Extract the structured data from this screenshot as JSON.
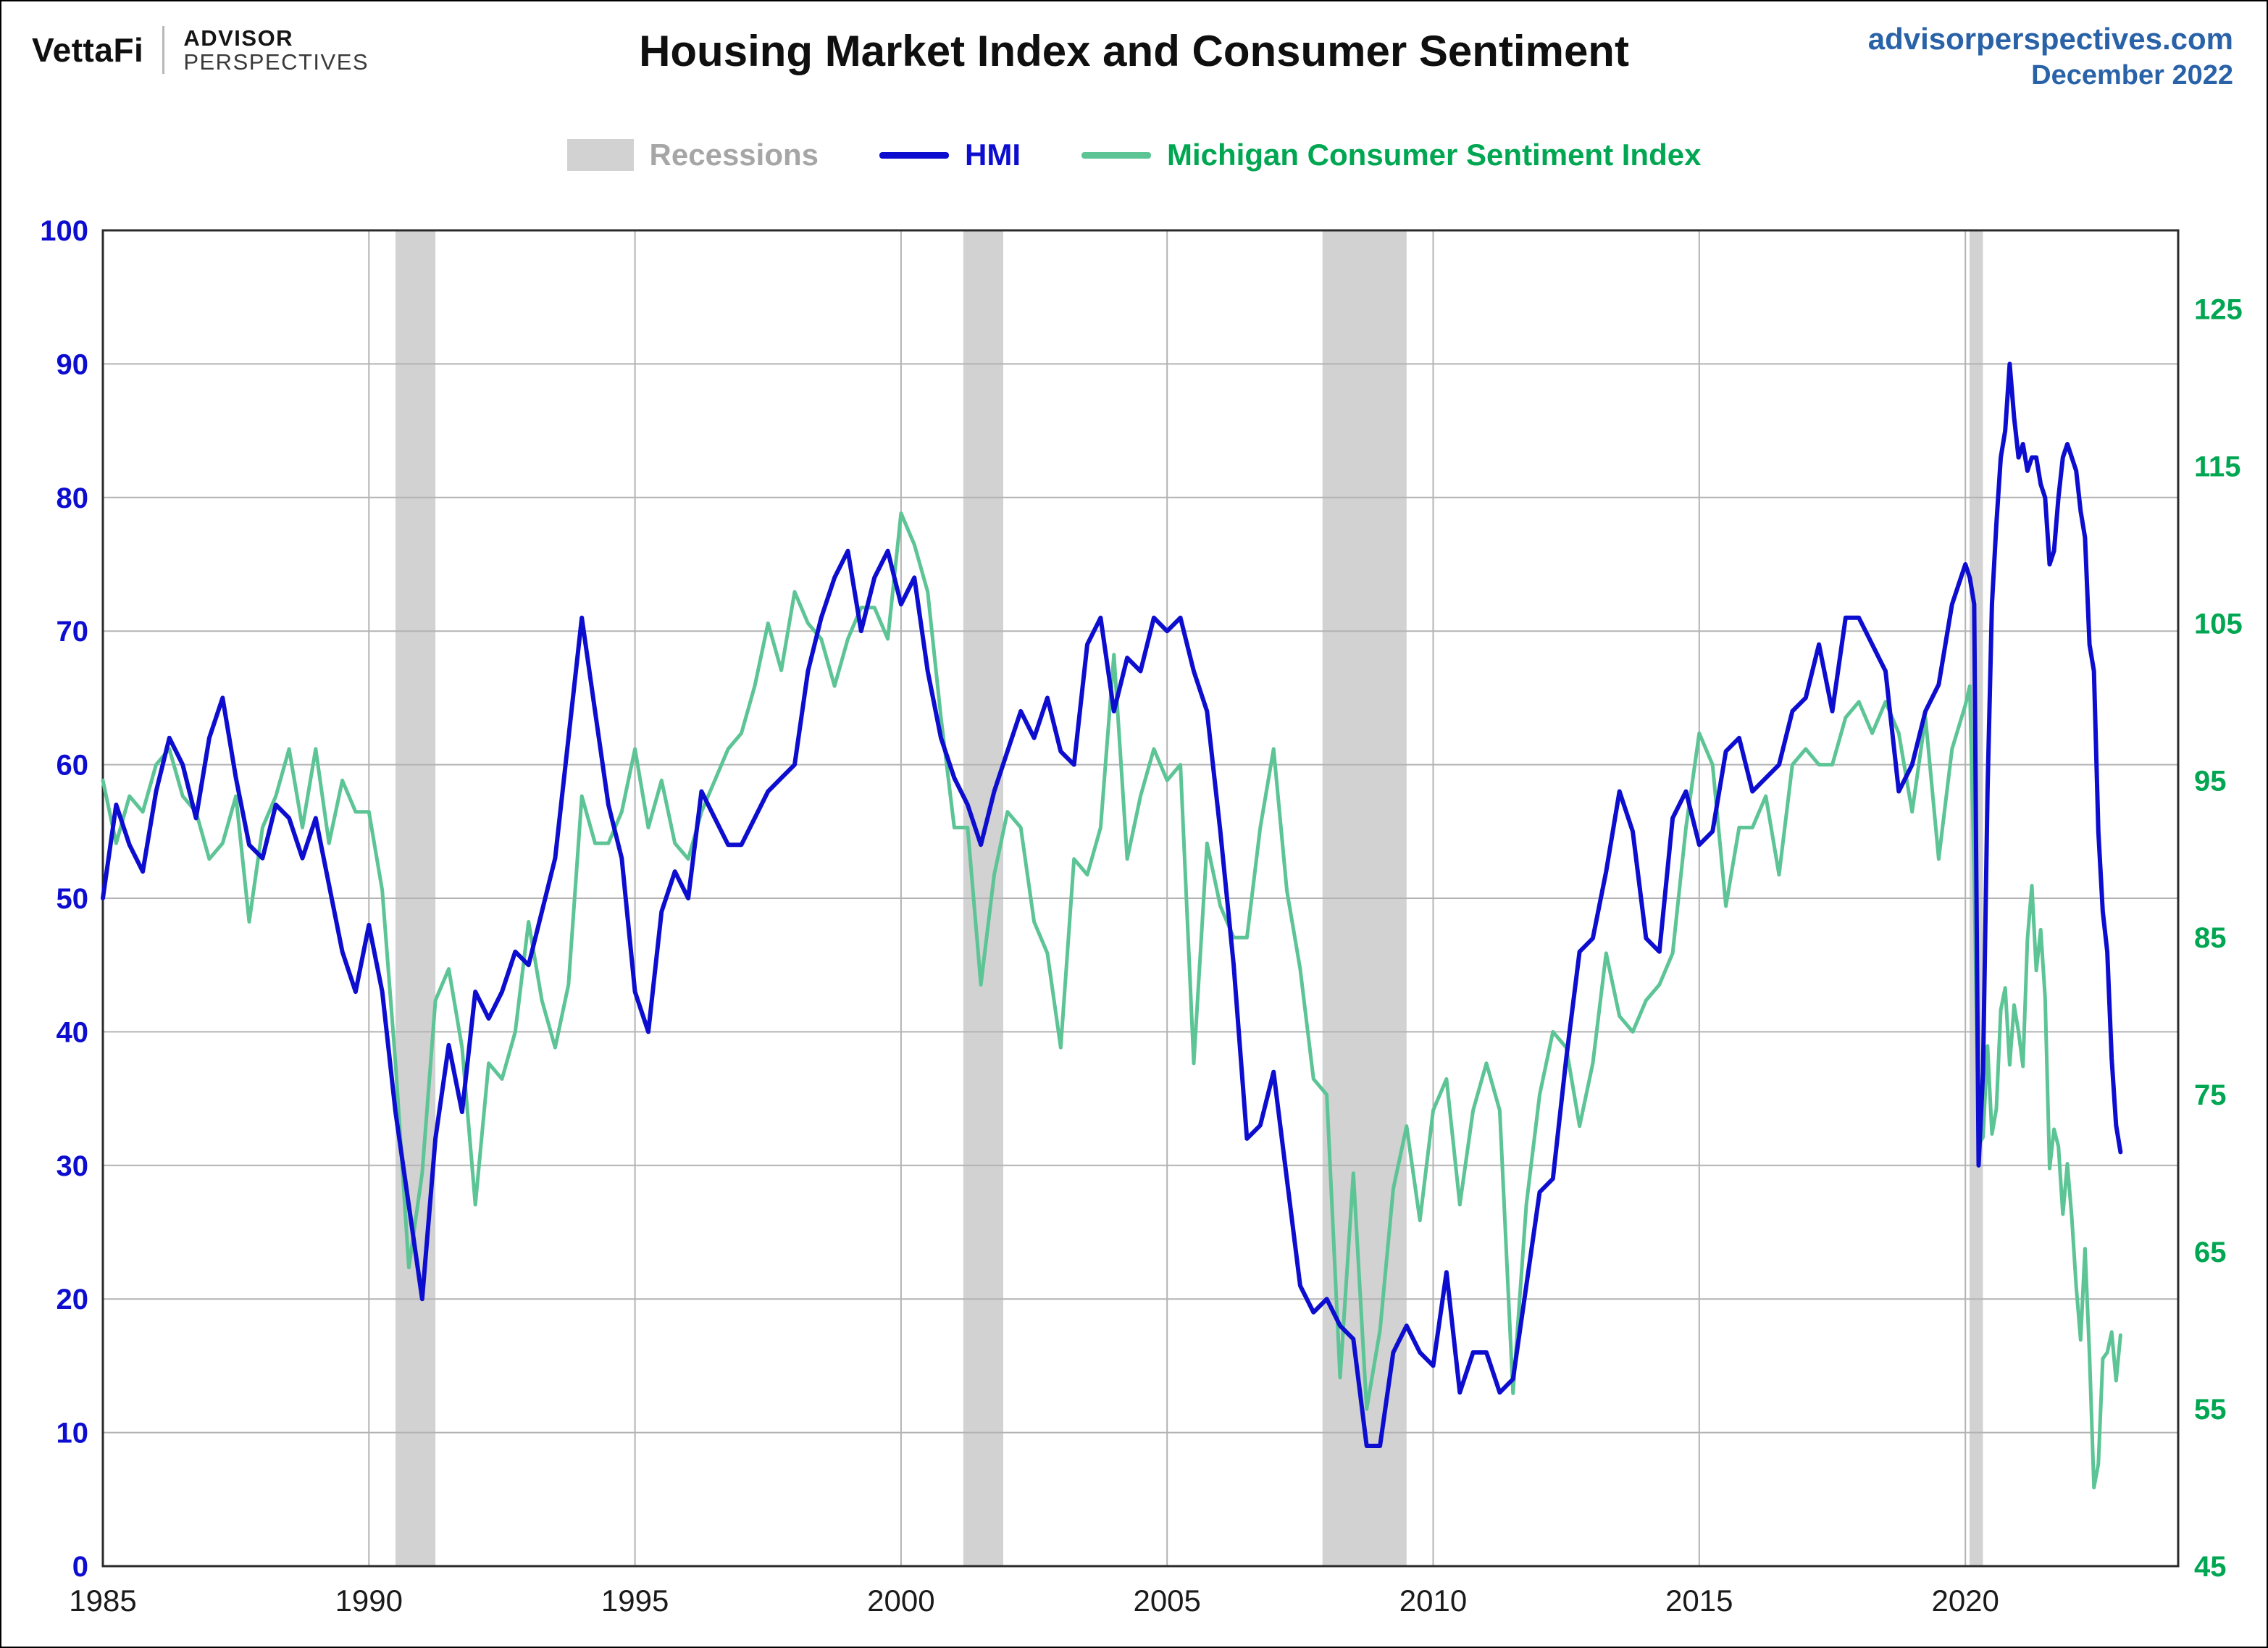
{
  "header": {
    "brand": {
      "vettafi": "VettaFi",
      "advisor_line1": "ADVISOR",
      "advisor_line2": "PERSPECTIVES"
    },
    "title": "Housing Market Index and Consumer Sentiment",
    "site": "advisorperspectives.com",
    "date": "December 2022"
  },
  "legend": {
    "recessions_label": "Recessions",
    "hmi_label": "HMI",
    "mcsi_label": "Michigan Consumer Sentiment Index"
  },
  "colors": {
    "title": "#0f0f0f",
    "site_link": "#2a62a8",
    "hmi": "#0d0dd0",
    "mcsi_line": "#5cc495",
    "mcsi_label": "#00a651",
    "recession_band": "#d2d2d2",
    "recessions_label": "#a6a6a6",
    "gridline": "#b3b3b3",
    "plot_border": "#2b2b2b",
    "x_label": "#1a1a1a"
  },
  "chart_data": {
    "type": "line",
    "title": "Housing Market Index and Consumer Sentiment",
    "x_axis": {
      "ticks": [
        1985,
        1990,
        1995,
        2000,
        2005,
        2010,
        2015,
        2020
      ],
      "range": [
        1985,
        2024
      ]
    },
    "left_axis": {
      "label": "HMI",
      "range": [
        0,
        100
      ],
      "ticks": [
        0,
        10,
        20,
        30,
        40,
        50,
        60,
        70,
        80,
        90,
        100
      ]
    },
    "right_axis": {
      "label": "Michigan Consumer Sentiment Index",
      "range": [
        45,
        130
      ],
      "ticks": [
        45,
        55,
        65,
        75,
        85,
        95,
        105,
        115,
        125
      ]
    },
    "recessions": [
      [
        1990.5,
        1991.25
      ],
      [
        2001.17,
        2001.92
      ],
      [
        2007.92,
        2009.5
      ],
      [
        2020.08,
        2020.33
      ]
    ],
    "series": [
      {
        "name": "HMI",
        "axis": "left",
        "color": "#0d0dd0",
        "segments": [
          {
            "start": 1985.0,
            "step": 0.25,
            "values": [
              50,
              57,
              54,
              52,
              58,
              62,
              60,
              56,
              62,
              65,
              59,
              54,
              53,
              57,
              56,
              53,
              56,
              51,
              46,
              43,
              48,
              43,
              34,
              27,
              20,
              32,
              39,
              34,
              43,
              41,
              43,
              46,
              45,
              49,
              53,
              62,
              71,
              64,
              57,
              53,
              43,
              40,
              49,
              52,
              50,
              58,
              56,
              54,
              54,
              56,
              58,
              59,
              60,
              67,
              71,
              74,
              76,
              70,
              74,
              76,
              72,
              74,
              67,
              62,
              59,
              57,
              54,
              58,
              61,
              64,
              62,
              65,
              61,
              60,
              69,
              71,
              64,
              68,
              67,
              71,
              70,
              71,
              67,
              64,
              55,
              45,
              32,
              33,
              37,
              29,
              21,
              19,
              20,
              18,
              17,
              9,
              9,
              16,
              18,
              16,
              15,
              22,
              13,
              16,
              16,
              13,
              14,
              21,
              28,
              29,
              38,
              46,
              47,
              52,
              58,
              55,
              47,
              46,
              56,
              58,
              54,
              55,
              61,
              62,
              58,
              59,
              60,
              64,
              65,
              69,
              64,
              71,
              71,
              69,
              67,
              58,
              60,
              64,
              66,
              72
            ]
          },
          {
            "start": 2020.0,
            "step": 0.0833333,
            "values": [
              75,
              74,
              72,
              30,
              37,
              58,
              72,
              78,
              83,
              85,
              90,
              86,
              83,
              84,
              82,
              83,
              83,
              81,
              80,
              75,
              76,
              80,
              83,
              84,
              83,
              82,
              79,
              77,
              69,
              67,
              55,
              49,
              46,
              38,
              33,
              31
            ]
          }
        ]
      },
      {
        "name": "Michigan Consumer Sentiment Index",
        "axis": "right",
        "color": "#5cc495",
        "segments": [
          {
            "start": 1985.0,
            "step": 0.25,
            "values": [
              95,
              91,
              94,
              93,
              96,
              97,
              94,
              93,
              90,
              91,
              94,
              86,
              92,
              94,
              97,
              92,
              97,
              91,
              95,
              93,
              93,
              88,
              77,
              64,
              70,
              81,
              83,
              78,
              68,
              77,
              76,
              79,
              86,
              81,
              78,
              82,
              94,
              91,
              91,
              93,
              97,
              92,
              95,
              91,
              90,
              93,
              95,
              97,
              98,
              101,
              105,
              102,
              107,
              105,
              104,
              101,
              104,
              106,
              106,
              104,
              112,
              110,
              107,
              99,
              92,
              92,
              82,
              89,
              93,
              92,
              86,
              84,
              78,
              90,
              89,
              92,
              103,
              90,
              94,
              97,
              95,
              96,
              77,
              91,
              87,
              85,
              85,
              92,
              97,
              88,
              83,
              76,
              75,
              57,
              70,
              55,
              60,
              69,
              73,
              67,
              74,
              76,
              68,
              74,
              77,
              74,
              56,
              68,
              75,
              79,
              78,
              73,
              77,
              84,
              80,
              79,
              81,
              82,
              84,
              92,
              98,
              96,
              87,
              92,
              92,
              94,
              89,
              96,
              97,
              96,
              96,
              99,
              100,
              98,
              100,
              98,
              93,
              99,
              90,
              97
            ]
          },
          {
            "start": 2020.0,
            "step": 0.0833333,
            "values": [
              99.8,
              101.0,
              89.1,
              71.8,
              72.3,
              78.1,
              72.5,
              74.1,
              80.4,
              81.8,
              76.9,
              80.7,
              79.0,
              76.8,
              84.9,
              88.3,
              82.9,
              85.5,
              81.2,
              70.3,
              72.8,
              71.7,
              67.4,
              70.6,
              67.2,
              62.8,
              59.4,
              65.2,
              58.4,
              50.0,
              51.5,
              58.2,
              58.6,
              59.9,
              56.8,
              59.7
            ]
          }
        ]
      }
    ]
  }
}
